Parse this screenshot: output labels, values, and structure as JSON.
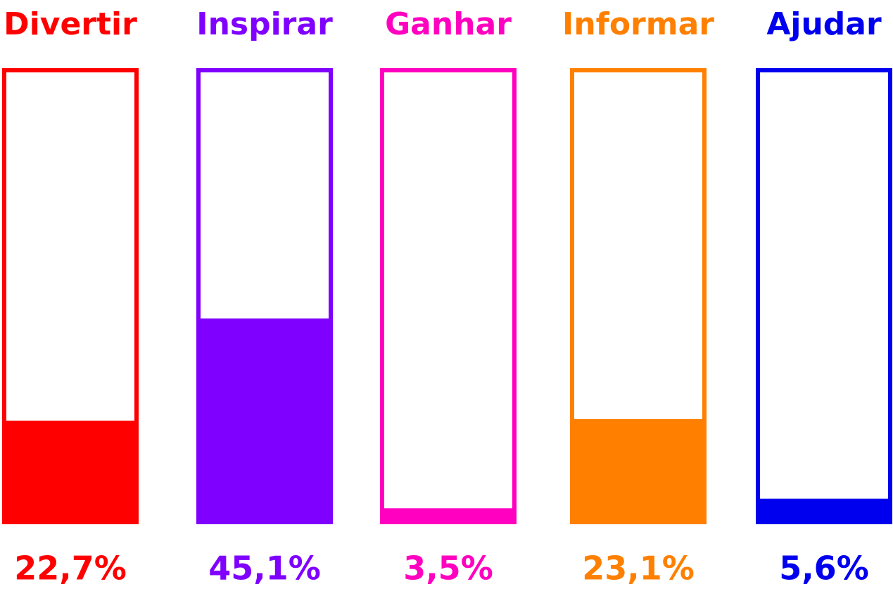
{
  "chart_data": {
    "type": "bar",
    "categories": [
      "Divertir",
      "Inspirar",
      "Ganhar",
      "Informar",
      "Ajudar"
    ],
    "values": [
      22.7,
      45.1,
      3.5,
      23.1,
      5.6
    ],
    "value_labels": [
      "22,7%",
      "45,1%",
      "3,5%",
      "23,1%",
      "5,6%"
    ],
    "colors": [
      "#ff0000",
      "#8000ff",
      "#ff00c0",
      "#ff8000",
      "#0000ee"
    ],
    "ylim": [
      0,
      100
    ]
  }
}
